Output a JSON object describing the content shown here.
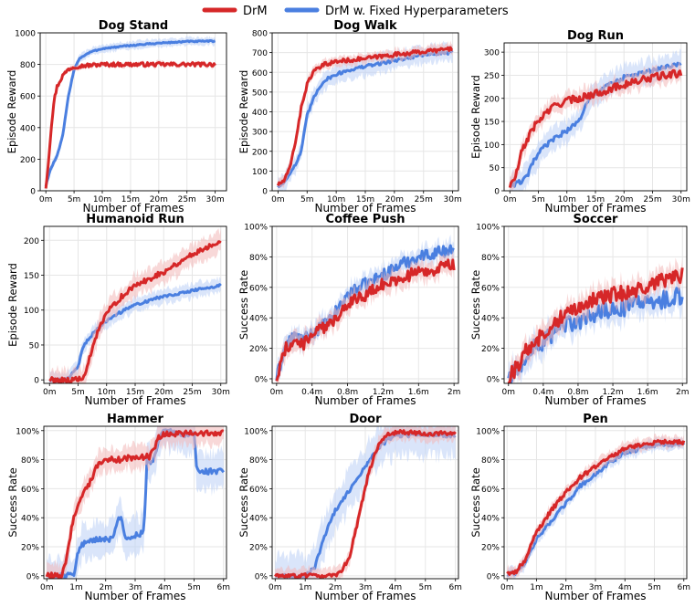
{
  "legend": {
    "placement": "top-center",
    "entries": [
      {
        "label": "DrM",
        "color": "#d62728"
      },
      {
        "label": "DrM w. Fixed Hyperparameters",
        "color": "#4a7fe0"
      }
    ]
  },
  "colors": {
    "drm": "#d62728",
    "fixed": "#4a7fe0",
    "drm_band": "#f2b8b8",
    "fixed_band": "#bcd0f5"
  },
  "chart_data": [
    {
      "type": "line",
      "title": "Dog Stand",
      "xlabel": "Number of Frames",
      "ylabel": "Episode Reward",
      "xlim": [
        -1,
        32
      ],
      "ylim": [
        0,
        1000
      ],
      "xticks": [
        0,
        5,
        10,
        15,
        20,
        25,
        30
      ],
      "xtick_labels": [
        "0m",
        "5m",
        "10m",
        "15m",
        "20m",
        "25m",
        "30m"
      ],
      "yticks": [
        0,
        200,
        400,
        600,
        800,
        1000
      ],
      "ytick_labels": [
        "0",
        "200",
        "400",
        "600",
        "800",
        "1000"
      ],
      "series": [
        {
          "name": "DrM",
          "band": 15,
          "noise": 12,
          "x": [
            0,
            0.5,
            1,
            1.5,
            2,
            3,
            4,
            5,
            6,
            8,
            10,
            12,
            15,
            20,
            25,
            30
          ],
          "values": [
            20,
            200,
            420,
            580,
            660,
            730,
            770,
            785,
            790,
            795,
            800,
            800,
            800,
            800,
            800,
            800
          ]
        },
        {
          "name": "DrM w. Fixed Hyperparameters",
          "band": 25,
          "noise": 4,
          "x": [
            0,
            0.5,
            1,
            2,
            3,
            4,
            5,
            6,
            8,
            10,
            15,
            20,
            25,
            30
          ],
          "values": [
            30,
            100,
            150,
            220,
            350,
            600,
            770,
            840,
            880,
            900,
            920,
            935,
            945,
            948
          ]
        }
      ]
    },
    {
      "type": "line",
      "title": "Dog Walk",
      "xlabel": "Number of Frames",
      "ylabel": "Episode Reward",
      "xlim": [
        -1,
        31
      ],
      "ylim": [
        0,
        800
      ],
      "xticks": [
        0,
        5,
        10,
        15,
        20,
        25,
        30
      ],
      "xtick_labels": [
        "0m",
        "5m",
        "10m",
        "15m",
        "20m",
        "25m",
        "30m"
      ],
      "yticks": [
        0,
        100,
        200,
        300,
        400,
        500,
        600,
        700,
        800
      ],
      "ytick_labels": [
        "0",
        "100",
        "200",
        "300",
        "400",
        "500",
        "600",
        "700",
        "800"
      ],
      "series": [
        {
          "name": "DrM",
          "band": 25,
          "noise": 10,
          "x": [
            0,
            1,
            2,
            3,
            4,
            5,
            6,
            7,
            8,
            10,
            15,
            20,
            25,
            30
          ],
          "values": [
            30,
            50,
            110,
            250,
            420,
            540,
            600,
            620,
            640,
            655,
            670,
            690,
            705,
            720
          ]
        },
        {
          "name": "DrM w. Fixed Hyperparameters",
          "band": 45,
          "noise": 8,
          "x": [
            0,
            1,
            2,
            3,
            4,
            5,
            6,
            7,
            8,
            10,
            12,
            15,
            20,
            25,
            30
          ],
          "values": [
            20,
            40,
            90,
            130,
            200,
            380,
            460,
            520,
            560,
            590,
            610,
            630,
            660,
            690,
            700
          ]
        }
      ]
    },
    {
      "type": "line",
      "title": "Dog Run",
      "xlabel": "Number of Frames",
      "ylabel": "Episode Reward",
      "xlim": [
        -1,
        31
      ],
      "ylim": [
        0,
        320
      ],
      "xticks": [
        0,
        5,
        10,
        15,
        20,
        25,
        30
      ],
      "xtick_labels": [
        "0m",
        "5m",
        "10m",
        "15m",
        "20m",
        "25m",
        "30m"
      ],
      "yticks": [
        0,
        50,
        100,
        150,
        200,
        250,
        300
      ],
      "ytick_labels": [
        "0",
        "50",
        "100",
        "150",
        "200",
        "250",
        "300"
      ],
      "series": [
        {
          "name": "DrM",
          "band": 18,
          "noise": 8,
          "x": [
            0,
            1,
            2,
            3,
            4,
            5,
            6,
            8,
            10,
            12,
            15,
            20,
            25,
            30
          ],
          "values": [
            10,
            30,
            80,
            110,
            135,
            150,
            165,
            185,
            195,
            200,
            210,
            230,
            245,
            255
          ]
        },
        {
          "name": "DrM w. Fixed Hyperparameters",
          "band": 25,
          "noise": 5,
          "x": [
            0,
            1,
            2,
            3,
            4,
            5,
            6,
            8,
            10,
            12,
            14,
            16,
            20,
            25,
            30
          ],
          "values": [
            10,
            15,
            20,
            30,
            60,
            80,
            95,
            115,
            130,
            150,
            200,
            220,
            245,
            260,
            275
          ]
        }
      ]
    },
    {
      "type": "line",
      "title": "Humanoid Run",
      "xlabel": "Number of Frames",
      "ylabel": "Episode Reward",
      "xlim": [
        -1,
        31
      ],
      "ylim": [
        -5,
        220
      ],
      "xticks": [
        0,
        5,
        10,
        15,
        20,
        25,
        30
      ],
      "xtick_labels": [
        "0m",
        "5m",
        "10m",
        "15m",
        "20m",
        "25m",
        "30m"
      ],
      "yticks": [
        0,
        50,
        100,
        150,
        200
      ],
      "ytick_labels": [
        "0",
        "50",
        "100",
        "150",
        "200"
      ],
      "series": [
        {
          "name": "DrM",
          "band": 15,
          "noise": 4,
          "x": [
            0,
            4,
            6,
            7,
            8,
            10,
            12,
            15,
            20,
            25,
            30
          ],
          "values": [
            0,
            0,
            2,
            30,
            60,
            95,
            115,
            135,
            155,
            180,
            200
          ]
        },
        {
          "name": "DrM w. Fixed Hyperparameters",
          "band": 10,
          "noise": 2,
          "x": [
            0,
            3,
            5,
            6,
            8,
            10,
            12,
            15,
            20,
            25,
            30
          ],
          "values": [
            0,
            0,
            20,
            50,
            70,
            85,
            95,
            108,
            120,
            128,
            135
          ]
        }
      ]
    },
    {
      "type": "line",
      "title": "Coffee Push",
      "xlabel": "Number of Frames",
      "ylabel": "Success Rate",
      "xlim": [
        -0.05,
        2.05
      ],
      "ylim": [
        -0.03,
        1.0
      ],
      "xticks": [
        0,
        0.4,
        0.8,
        1.2,
        1.6,
        2.0
      ],
      "xtick_labels": [
        "0m",
        "0.4m",
        "0.8m",
        "1.2m",
        "1.6m",
        "2m"
      ],
      "yticks": [
        0,
        0.2,
        0.4,
        0.6,
        0.8,
        1.0
      ],
      "ytick_labels": [
        "0%",
        "20%",
        "40%",
        "60%",
        "80%",
        "100%"
      ],
      "series": [
        {
          "name": "DrM",
          "band": 0.06,
          "noise": 0.04,
          "x": [
            0,
            0.1,
            0.2,
            0.3,
            0.4,
            0.6,
            0.8,
            1.0,
            1.2,
            1.4,
            1.6,
            1.8,
            2.0
          ],
          "values": [
            0,
            0.2,
            0.25,
            0.22,
            0.3,
            0.35,
            0.5,
            0.55,
            0.62,
            0.66,
            0.7,
            0.72,
            0.75
          ]
        },
        {
          "name": "DrM w. Fixed Hyperparameters",
          "band": 0.06,
          "noise": 0.04,
          "x": [
            0,
            0.1,
            0.2,
            0.3,
            0.4,
            0.6,
            0.8,
            1.0,
            1.2,
            1.4,
            1.6,
            1.8,
            2.0
          ],
          "values": [
            0,
            0.22,
            0.28,
            0.25,
            0.3,
            0.38,
            0.55,
            0.62,
            0.68,
            0.75,
            0.8,
            0.83,
            0.85
          ]
        }
      ]
    },
    {
      "type": "line",
      "title": "Soccer",
      "xlabel": "Number of Frames",
      "ylabel": "Success Rate",
      "xlim": [
        -0.05,
        2.05
      ],
      "ylim": [
        -0.03,
        1.0
      ],
      "xticks": [
        0,
        0.4,
        0.8,
        1.2,
        1.6,
        2.0
      ],
      "xtick_labels": [
        "0m",
        "0.4m",
        "0.8m",
        "1.2m",
        "1.6m",
        "2m"
      ],
      "yticks": [
        0,
        0.2,
        0.4,
        0.6,
        0.8,
        1.0
      ],
      "ytick_labels": [
        "0%",
        "20%",
        "40%",
        "60%",
        "80%",
        "100%"
      ],
      "series": [
        {
          "name": "DrM",
          "band": 0.07,
          "noise": 0.05,
          "x": [
            0,
            0.1,
            0.2,
            0.4,
            0.6,
            0.8,
            1.0,
            1.2,
            1.4,
            1.6,
            1.8,
            2.0
          ],
          "values": [
            0,
            0.08,
            0.18,
            0.3,
            0.4,
            0.48,
            0.52,
            0.55,
            0.57,
            0.6,
            0.65,
            0.68
          ]
        },
        {
          "name": "DrM w. Fixed Hyperparameters",
          "band": 0.08,
          "noise": 0.06,
          "x": [
            0,
            0.1,
            0.2,
            0.4,
            0.6,
            0.8,
            1.0,
            1.2,
            1.4,
            1.6,
            1.8,
            2.0
          ],
          "values": [
            0,
            0.05,
            0.15,
            0.25,
            0.33,
            0.38,
            0.42,
            0.45,
            0.48,
            0.5,
            0.52,
            0.55
          ]
        }
      ]
    },
    {
      "type": "line",
      "title": "Hammer",
      "xlabel": "Number of Frames",
      "ylabel": "Success Rate",
      "xlim": [
        -0.1,
        6.1
      ],
      "ylim": [
        -0.02,
        1.03
      ],
      "xticks": [
        0,
        1,
        2,
        3,
        4,
        5,
        6
      ],
      "xtick_labels": [
        "0m",
        "1m",
        "2m",
        "3m",
        "4m",
        "5m",
        "6m"
      ],
      "yticks": [
        0,
        0.2,
        0.4,
        0.6,
        0.8,
        1.0
      ],
      "ytick_labels": [
        "0%",
        "20%",
        "40%",
        "60%",
        "80%",
        "100%"
      ],
      "series": [
        {
          "name": "DrM",
          "band": 0.08,
          "noise": 0.02,
          "x": [
            0,
            0.5,
            0.7,
            0.9,
            1.1,
            1.4,
            1.7,
            2.0,
            2.5,
            3.0,
            3.5,
            3.8,
            4.0,
            5.0,
            6.0
          ],
          "values": [
            0,
            0,
            0.15,
            0.4,
            0.5,
            0.62,
            0.75,
            0.8,
            0.8,
            0.82,
            0.82,
            0.95,
            0.98,
            0.98,
            0.98
          ]
        },
        {
          "name": "DrM w. Fixed Hyperparameters",
          "band": 0.12,
          "noise": 0.02,
          "x": [
            0,
            0.9,
            1.1,
            1.4,
            1.7,
            2.2,
            2.5,
            2.7,
            3.0,
            3.3,
            3.4,
            3.6,
            3.9,
            4.5,
            5.0,
            5.1,
            6.0
          ],
          "values": [
            0,
            0,
            0.2,
            0.25,
            0.25,
            0.25,
            0.42,
            0.25,
            0.28,
            0.3,
            0.8,
            0.78,
            1.0,
            0.98,
            0.97,
            0.72,
            0.72
          ]
        }
      ]
    },
    {
      "type": "line",
      "title": "Door",
      "xlabel": "Number of Frames",
      "ylabel": "Success Rate",
      "xlim": [
        -0.1,
        6.1
      ],
      "ylim": [
        -0.02,
        1.03
      ],
      "xticks": [
        0,
        1,
        2,
        3,
        4,
        5,
        6
      ],
      "xtick_labels": [
        "0m",
        "1m",
        "2m",
        "3m",
        "4m",
        "5m",
        "6m"
      ],
      "yticks": [
        0,
        0.2,
        0.4,
        0.6,
        0.8,
        1.0
      ],
      "ytick_labels": [
        "0%",
        "20%",
        "40%",
        "60%",
        "80%",
        "100%"
      ],
      "series": [
        {
          "name": "DrM",
          "band": 0.05,
          "noise": 0.015,
          "x": [
            0,
            1.9,
            2.2,
            2.5,
            2.8,
            3.1,
            3.4,
            3.7,
            4.0,
            5.0,
            6.0
          ],
          "values": [
            0,
            0,
            0.02,
            0.15,
            0.42,
            0.7,
            0.88,
            0.97,
            0.99,
            0.98,
            0.98
          ]
        },
        {
          "name": "DrM w. Fixed Hyperparameters",
          "band": 0.14,
          "noise": 0.015,
          "x": [
            0,
            1.0,
            1.3,
            1.6,
            2.0,
            2.5,
            3.0,
            3.5,
            4.0,
            5.0,
            6.0
          ],
          "values": [
            0,
            0,
            0.05,
            0.25,
            0.45,
            0.6,
            0.75,
            0.9,
            0.97,
            0.97,
            0.97
          ]
        }
      ]
    },
    {
      "type": "line",
      "title": "Pen",
      "xlabel": "Number of Frames",
      "ylabel": "Success Rate",
      "xlim": [
        -0.1,
        6.1
      ],
      "ylim": [
        -0.02,
        1.03
      ],
      "xticks": [
        0,
        1,
        2,
        3,
        4,
        5,
        6
      ],
      "xtick_labels": [
        "0m",
        "1m",
        "2m",
        "3m",
        "4m",
        "5m",
        "6m"
      ],
      "yticks": [
        0,
        0.2,
        0.4,
        0.6,
        0.8,
        1.0
      ],
      "ytick_labels": [
        "0%",
        "20%",
        "40%",
        "60%",
        "80%",
        "100%"
      ],
      "series": [
        {
          "name": "DrM",
          "band": 0.04,
          "noise": 0.015,
          "x": [
            0,
            0.3,
            0.6,
            1.0,
            1.5,
            2.0,
            2.5,
            3.0,
            3.5,
            4.0,
            5.0,
            6.0
          ],
          "values": [
            0.02,
            0.03,
            0.1,
            0.3,
            0.45,
            0.58,
            0.68,
            0.75,
            0.82,
            0.88,
            0.92,
            0.92
          ]
        },
        {
          "name": "DrM w. Fixed Hyperparameters",
          "band": 0.04,
          "noise": 0.015,
          "x": [
            0,
            0.3,
            0.6,
            1.0,
            1.5,
            2.0,
            2.5,
            3.0,
            3.5,
            4.0,
            5.0,
            6.0
          ],
          "values": [
            0.01,
            0.02,
            0.08,
            0.25,
            0.38,
            0.5,
            0.62,
            0.7,
            0.78,
            0.85,
            0.9,
            0.91
          ]
        }
      ]
    }
  ]
}
